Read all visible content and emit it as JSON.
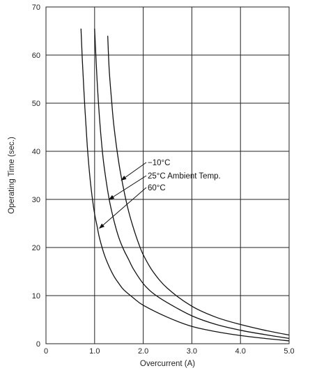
{
  "chart_data": {
    "type": "line",
    "xlabel": "Overcurrent (A)",
    "ylabel": "Operating Time (sec.)",
    "xlim": [
      0,
      5.0
    ],
    "ylim": [
      0,
      70
    ],
    "x_ticks": [
      "0",
      "1.0",
      "2.0",
      "3.0",
      "4.0",
      "5.0"
    ],
    "y_ticks": [
      "0",
      "10",
      "20",
      "30",
      "40",
      "50",
      "60",
      "70"
    ],
    "grid": true,
    "series": [
      {
        "name": "60°C",
        "x": [
          0.72,
          0.75,
          0.8,
          0.85,
          0.9,
          0.95,
          1.0,
          1.05,
          1.1,
          1.2,
          1.3,
          1.4,
          1.5,
          1.6,
          1.8,
          2.0,
          2.5,
          3.0,
          3.5,
          4.0,
          4.5,
          5.0
        ],
        "y": [
          65.5,
          58.5,
          49.0,
          41.0,
          35.0,
          30.5,
          27.0,
          24.5,
          22.0,
          18.5,
          16.0,
          14.0,
          12.5,
          11.2,
          9.5,
          8.0,
          5.5,
          3.6,
          2.5,
          1.7,
          1.1,
          0.6
        ]
      },
      {
        "name": "25°C Ambient Temp.",
        "x": [
          1.0,
          1.05,
          1.1,
          1.15,
          1.2,
          1.3,
          1.4,
          1.5,
          1.6,
          1.7,
          1.8,
          2.0,
          2.2,
          2.5,
          3.0,
          3.5,
          4.0,
          4.5,
          5.0
        ],
        "y": [
          65.5,
          55.0,
          47.0,
          41.0,
          36.5,
          30.0,
          25.5,
          22.0,
          19.5,
          17.5,
          15.5,
          12.5,
          10.5,
          8.5,
          5.8,
          4.0,
          2.8,
          1.9,
          1.1
        ]
      },
      {
        "name": "−10°C",
        "x": [
          1.27,
          1.3,
          1.35,
          1.4,
          1.5,
          1.6,
          1.7,
          1.8,
          1.9,
          2.0,
          2.2,
          2.5,
          3.0,
          3.5,
          4.0,
          4.5,
          5.0
        ],
        "y": [
          64.0,
          57.0,
          50.5,
          45.0,
          37.5,
          32.0,
          27.5,
          24.0,
          21.0,
          18.5,
          15.0,
          11.5,
          7.8,
          5.5,
          4.0,
          2.8,
          1.8
        ]
      }
    ],
    "annotations": [
      {
        "text": "−10°C",
        "points_to": [
          1.55,
          34.0
        ]
      },
      {
        "text": "25°C Ambient Temp.",
        "points_to": [
          1.3,
          30.0
        ]
      },
      {
        "text": "60°C",
        "points_to": [
          1.1,
          24.0
        ]
      }
    ]
  }
}
